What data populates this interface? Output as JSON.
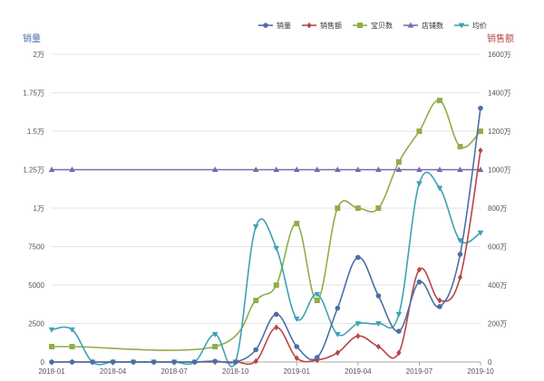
{
  "chart_data": {
    "type": "line",
    "x": [
      "2018-01",
      "2018-02",
      "2018-03",
      "2018-04",
      "2018-05",
      "2018-06",
      "2018-07",
      "2018-08",
      "2018-09",
      "2018-10",
      "2018-11",
      "2018-12",
      "2019-01",
      "2019-02",
      "2019-03",
      "2019-04",
      "2019-05",
      "2019-06",
      "2019-07",
      "2019-08",
      "2019-09",
      "2019-10"
    ],
    "x_tick_labels": [
      "2018-01",
      "2018-04",
      "2018-07",
      "2018-10",
      "2019-01",
      "2019-04",
      "2019-07",
      "2019-10"
    ],
    "left_axis": {
      "title": "销量",
      "color": "#4a6fa5",
      "ticks": [
        {
          "value": 0,
          "label": "0"
        },
        {
          "value": 2500,
          "label": "2500"
        },
        {
          "value": 5000,
          "label": "5000"
        },
        {
          "value": 7500,
          "label": "7500"
        },
        {
          "value": 10000,
          "label": "1万"
        },
        {
          "value": 12500,
          "label": "1.25万"
        },
        {
          "value": 15000,
          "label": "1.5万"
        },
        {
          "value": 17500,
          "label": "1.75万"
        },
        {
          "value": 20000,
          "label": "2万"
        }
      ],
      "range": [
        0,
        20000
      ]
    },
    "right_axis": {
      "title": "销售额",
      "color": "#b84545",
      "ticks": [
        {
          "value": 0,
          "label": "0"
        },
        {
          "value": 2000000,
          "label": "200万"
        },
        {
          "value": 4000000,
          "label": "400万"
        },
        {
          "value": 6000000,
          "label": "600万"
        },
        {
          "value": 8000000,
          "label": "800万"
        },
        {
          "value": 10000000,
          "label": "1000万"
        },
        {
          "value": 12000000,
          "label": "1200万"
        },
        {
          "value": 14000000,
          "label": "1400万"
        },
        {
          "value": 16000000,
          "label": "1600万"
        }
      ],
      "range": [
        0,
        16000000
      ]
    },
    "legend_position": "top-right",
    "grid": true,
    "series": [
      {
        "name": "销量",
        "color": "#4a6fa5",
        "marker": "circle",
        "axis": "left",
        "values": [
          0,
          0,
          0,
          0,
          0,
          0,
          0,
          0,
          50,
          0,
          800,
          3100,
          1000,
          300,
          3500,
          6800,
          4300,
          2000,
          5200,
          3600,
          7000,
          16500
        ]
      },
      {
        "name": "销售额",
        "color": "#b84545",
        "marker": "diamond",
        "axis": "right",
        "values": [
          0,
          0,
          0,
          0,
          0,
          0,
          0,
          0,
          4000,
          0,
          40000,
          1800000,
          200000,
          100000,
          480000,
          1350000,
          800000,
          480000,
          4800000,
          3200000,
          4400000,
          11000000
        ]
      },
      {
        "name": "宝贝数",
        "color": "#8fae4a",
        "marker": "square",
        "axis": "left",
        "values": [
          1000,
          1000,
          null,
          null,
          null,
          null,
          null,
          null,
          1000,
          null,
          4000,
          5000,
          9000,
          4000,
          10000,
          10000,
          10000,
          13000,
          15000,
          17000,
          14000,
          15000
        ]
      },
      {
        "name": "店铺数",
        "color": "#7b6aa8",
        "marker": "triangle",
        "axis": "left",
        "values": [
          12500,
          12500,
          null,
          null,
          null,
          null,
          null,
          null,
          12500,
          null,
          12500,
          12500,
          12500,
          12500,
          12500,
          12500,
          12500,
          12500,
          12500,
          12500,
          12500,
          12500
        ]
      },
      {
        "name": "均价",
        "color": "#3ea1b4",
        "marker": "triangle-down",
        "axis": "left",
        "values": [
          2100,
          2100,
          0,
          0,
          0,
          0,
          0,
          0,
          1800,
          0,
          8800,
          7400,
          2800,
          4400,
          1800,
          2500,
          2500,
          3100,
          11600,
          11300,
          7900,
          8400
        ]
      }
    ]
  }
}
